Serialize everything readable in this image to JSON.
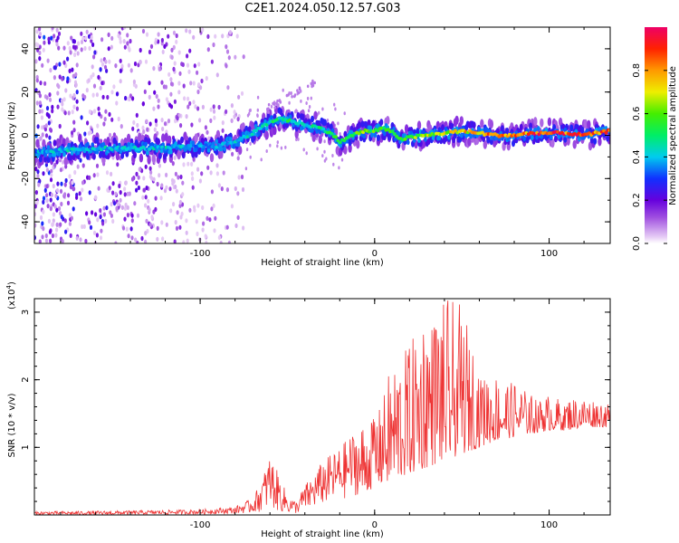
{
  "title": "C2E1.2024.050.12.57.G03",
  "colorbar": {
    "label": "Normalized spectral amplitude",
    "ticks": [
      "0.0",
      "0.2",
      "0.4",
      "0.6",
      "0.8"
    ],
    "tick_values": [
      0.0,
      0.2,
      0.4,
      0.6,
      0.8
    ],
    "range": [
      0,
      1
    ]
  },
  "chart_data": [
    {
      "type": "heatmap",
      "xlabel": "Height of straight line (km)",
      "ylabel": "Frequency (Hz)",
      "xlim": [
        -195,
        135
      ],
      "ylim": [
        -50,
        50
      ],
      "xticks": [
        -100,
        0,
        100
      ],
      "xtick_labels": [
        "-100",
        "0",
        "100"
      ],
      "yticks": [
        -40,
        -20,
        0,
        20,
        40
      ],
      "ytick_labels": [
        "-40",
        "-20",
        "0",
        "20",
        "40"
      ],
      "ridge": {
        "x": [
          -195,
          -180,
          -160,
          -140,
          -120,
          -100,
          -90,
          -80,
          -70,
          -60,
          -55,
          -50,
          -45,
          -40,
          -35,
          -30,
          -25,
          -20,
          -15,
          -10,
          -5,
          0,
          5,
          10,
          15,
          20,
          30,
          40,
          50,
          60,
          70,
          80,
          90,
          100,
          110,
          120,
          135
        ],
        "y": [
          -8,
          -7,
          -6,
          -6,
          -6,
          -5,
          -5,
          -3,
          1,
          6,
          8,
          7,
          6,
          5,
          4,
          3,
          1,
          -3,
          -1,
          1,
          2,
          2,
          3,
          2,
          -2,
          -1,
          0,
          1,
          2,
          1,
          0,
          0,
          1,
          1,
          1,
          0,
          2
        ],
        "peak_amplitude": [
          0.4,
          0.45,
          0.45,
          0.45,
          0.45,
          0.4,
          0.4,
          0.45,
          0.5,
          0.5,
          0.55,
          0.55,
          0.5,
          0.5,
          0.5,
          0.5,
          0.55,
          0.6,
          0.65,
          0.65,
          0.65,
          0.65,
          0.6,
          0.6,
          0.6,
          0.65,
          0.7,
          0.75,
          0.8,
          0.85,
          0.9,
          0.9,
          0.95,
          0.95,
          0.95,
          0.95,
          0.9
        ]
      }
    },
    {
      "type": "line",
      "xlabel": "Height of straight line (km)",
      "ylabel": "SNR (10 * v/v)",
      "y_multiplier": "(x10",
      "y_multiplier_exp": "4",
      "y_multiplier_close": ")",
      "xlim": [
        -195,
        135
      ],
      "ylim": [
        0,
        3.2
      ],
      "xticks": [
        -100,
        0,
        100
      ],
      "xtick_labels": [
        "-100",
        "0",
        "100"
      ],
      "yticks": [
        1,
        2,
        3
      ],
      "ytick_labels": [
        "1",
        "2",
        "3"
      ],
      "series": [
        {
          "color": "#ee3333",
          "envelope_x": [
            -195,
            -150,
            -100,
            -80,
            -70,
            -65,
            -60,
            -55,
            -50,
            -45,
            -40,
            -35,
            -30,
            -20,
            -10,
            0,
            10,
            20,
            30,
            40,
            50,
            60,
            70,
            80,
            90,
            100,
            110,
            120,
            135
          ],
          "envelope_max": [
            0.05,
            0.06,
            0.08,
            0.12,
            0.25,
            0.5,
            0.9,
            0.6,
            0.3,
            0.2,
            0.45,
            0.6,
            0.8,
            1.0,
            1.3,
            1.6,
            2.3,
            2.7,
            3.2,
            3.2,
            3.1,
            2.3,
            2.1,
            2.0,
            1.85,
            1.8,
            1.75,
            1.75,
            1.7
          ],
          "envelope_min": [
            0.0,
            0.0,
            0.01,
            0.02,
            0.03,
            0.05,
            0.1,
            0.05,
            0.02,
            0.02,
            0.05,
            0.1,
            0.15,
            0.2,
            0.3,
            0.4,
            0.5,
            0.6,
            0.7,
            0.8,
            0.9,
            1.0,
            1.1,
            1.15,
            1.2,
            1.25,
            1.25,
            1.3,
            1.3
          ]
        }
      ]
    }
  ]
}
